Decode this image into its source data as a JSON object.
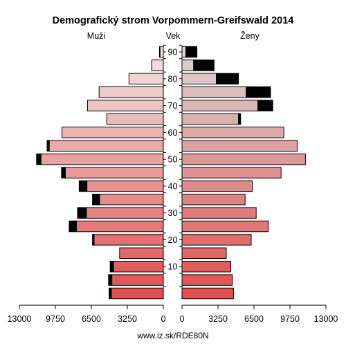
{
  "chart_data": {
    "type": "bar",
    "title": "Demografický strom Vorpommern-Greifswald 2014",
    "left_label": "Muži",
    "center_label": "Vek",
    "right_label": "Ženy",
    "source": "www.iz.sk/RDE80N",
    "age_groups": [
      "0-4",
      "5-9",
      "10-14",
      "15-19",
      "20-24",
      "25-29",
      "30-34",
      "35-39",
      "40-44",
      "45-49",
      "50-54",
      "55-59",
      "60-64",
      "65-69",
      "70-74",
      "75-79",
      "80-84",
      "85-89",
      "90+"
    ],
    "age_ticks": [
      10,
      20,
      30,
      40,
      50,
      60,
      70,
      80,
      90
    ],
    "xlim": [
      0,
      13000
    ],
    "x_ticks_left": [
      "13000",
      "9750",
      "6500",
      "3250",
      "0"
    ],
    "x_ticks_right": [
      "0",
      "3250",
      "6500",
      "9750",
      "13000"
    ],
    "series": [
      {
        "name": "Muži",
        "values": [
          4700,
          4650,
          4500,
          3950,
          6250,
          7850,
          6950,
          5750,
          6900,
          8850,
          11050,
          10300,
          9150,
          5100,
          6850,
          5800,
          3100,
          1050,
          300
        ]
      },
      {
        "name": "Muži – prebytok",
        "values": [
          200,
          300,
          300,
          0,
          150,
          650,
          800,
          650,
          700,
          350,
          400,
          200,
          0,
          0,
          0,
          0,
          0,
          0,
          50
        ]
      },
      {
        "name": "Ženy",
        "values": [
          4650,
          4550,
          4400,
          4000,
          6250,
          7800,
          6700,
          5700,
          6350,
          8950,
          11150,
          10400,
          9200,
          5100,
          6850,
          5800,
          3100,
          1050,
          350
        ]
      },
      {
        "name": "Ženy – prebytok",
        "values": [
          0,
          0,
          0,
          0,
          0,
          0,
          0,
          0,
          0,
          0,
          0,
          0,
          0,
          200,
          1350,
          2200,
          2000,
          1850,
          1000
        ]
      }
    ]
  }
}
